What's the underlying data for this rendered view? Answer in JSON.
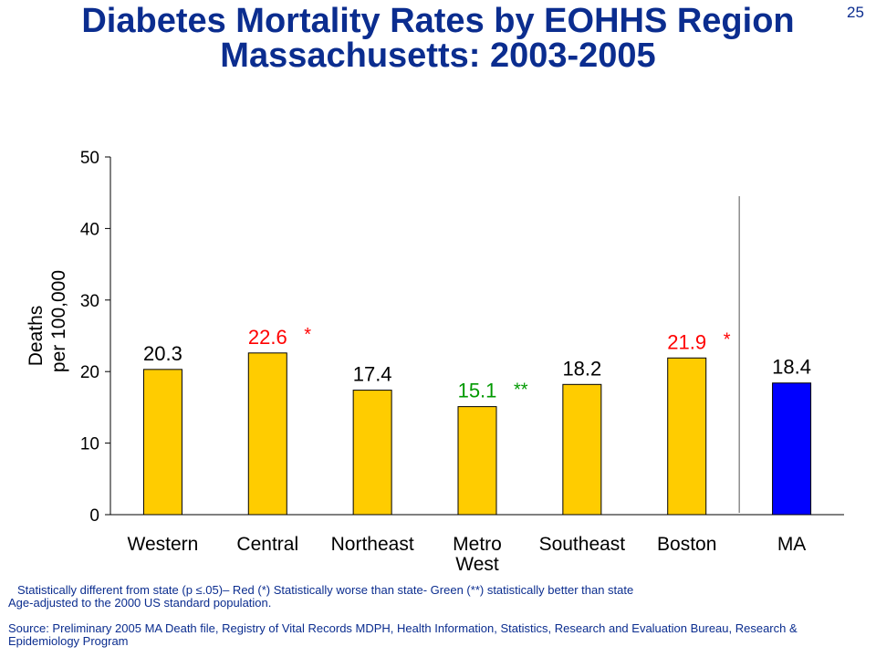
{
  "slide": {
    "title_line1": "Diabetes Mortality Rates by EOHHS Region",
    "title_line2": "Massachusetts: 2003-2005",
    "page_number": "25"
  },
  "notes": {
    "significance": "Statistically different from state (p ≤.05)– Red (*) Statistically worse than state- Green (**) statistically better than state",
    "age_adjusted": "Age-adjusted to the 2000 US standard population.",
    "source": "Source: Preliminary 2005 MA Death file, Registry of Vital Records MDPH, Health Information, Statistics, Research and Evaluation Bureau, Research & Epidemiology Program"
  },
  "chart_data": {
    "type": "bar",
    "title": "Diabetes Mortality Rates by EOHHS Region Massachusetts: 2003-2005",
    "ylabel_line1": "Deaths",
    "ylabel_line2": "per 100,000",
    "ylim": [
      0,
      50
    ],
    "yticks": [
      "0",
      "10",
      "20",
      "30",
      "40",
      "50"
    ],
    "categories": [
      "Western",
      "Central",
      "Northeast",
      "Metro West",
      "Southeast",
      "Boston",
      "MA"
    ],
    "category_labels": [
      [
        "Western"
      ],
      [
        "Central"
      ],
      [
        "Northeast"
      ],
      [
        "Metro",
        "West"
      ],
      [
        "Southeast"
      ],
      [
        "Boston"
      ],
      [
        "MA"
      ]
    ],
    "values": [
      20.3,
      22.6,
      17.4,
      15.1,
      18.2,
      21.9,
      18.4
    ],
    "value_labels": [
      "20.3",
      "22.6",
      "17.4",
      "15.1",
      "18.2",
      "21.9",
      "18.4"
    ],
    "markers": [
      "",
      "*",
      "",
      "**",
      "",
      "*",
      ""
    ],
    "label_colors": [
      "#000000",
      "#ff0000",
      "#000000",
      "#009900",
      "#000000",
      "#ff0000",
      "#000000"
    ],
    "bar_colors": [
      "#ffcc00",
      "#ffcc00",
      "#ffcc00",
      "#ffcc00",
      "#ffcc00",
      "#ffcc00",
      "#0000ff"
    ],
    "separator_before": "MA",
    "grid": false
  }
}
